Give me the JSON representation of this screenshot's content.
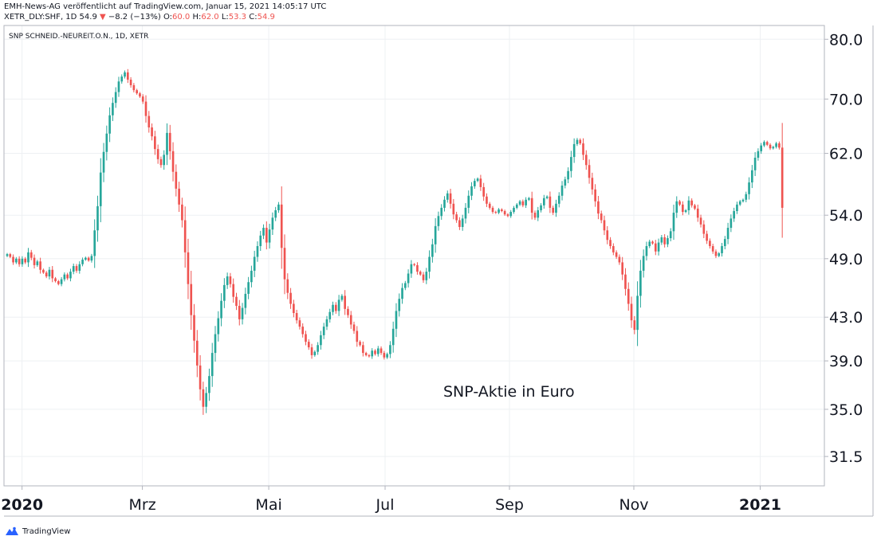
{
  "header": {
    "line1": "EMH-News-AG veröffentlicht auf TradingView.com, Januar 15, 2021 14:05:17 UTC",
    "symbol": "XETR_DLY:SHF, 1D",
    "last": "54.9",
    "change_arrow": "▼",
    "change": "−8.2 (−13%)",
    "o_label": "O:",
    "o_value": "60.0",
    "h_label": "H:",
    "h_value": "62.0",
    "l_label": "L:",
    "l_value": "53.3",
    "c_label": "C:",
    "c_value": "54.9"
  },
  "footer": {
    "brand": "TradingView"
  },
  "colors": {
    "up": "#26a69a",
    "down": "#ef5350",
    "grid": "#eef0f3",
    "border": "#b2b5be"
  },
  "chart_data": {
    "type": "candlestick",
    "title": "SNP SCHNEID.-NEUREIT.O.N., 1D, XETR",
    "annotation": "SNP-Aktie in Euro",
    "y_scale": "log",
    "ylim": [
      29.5,
      82.5
    ],
    "y_ticks": [
      "80.0",
      "70.0",
      "62.0",
      "54.0",
      "49.0",
      "43.0",
      "39.0",
      "35.0",
      "31.5"
    ],
    "x_ticks": [
      {
        "label": "2020",
        "date": "2020-01-02",
        "bold": true
      },
      {
        "label": "Mrz",
        "date": "2020-03-02",
        "bold": false
      },
      {
        "label": "Mai",
        "date": "2020-05-04",
        "bold": false
      },
      {
        "label": "Jul",
        "date": "2020-07-01",
        "bold": false
      },
      {
        "label": "Sep",
        "date": "2020-09-01",
        "bold": false
      },
      {
        "label": "Nov",
        "date": "2020-11-02",
        "bold": false
      },
      {
        "label": "2021",
        "date": "2021-01-04",
        "bold": true
      }
    ],
    "x_range": [
      "2019-12-24",
      "2021-02-05"
    ],
    "last_date": "2021-01-15",
    "closes": [
      49.5,
      49.2,
      48.6,
      49.0,
      48.4,
      49.0,
      48.6,
      49.7,
      49.1,
      48.3,
      48.7,
      47.8,
      47.5,
      47.1,
      47.8,
      46.9,
      46.6,
      46.3,
      46.8,
      47.3,
      46.9,
      47.6,
      48.2,
      47.7,
      48.4,
      48.9,
      49.1,
      48.8,
      49.3,
      52.2,
      55.1,
      59.4,
      62.2,
      64.8,
      67.5,
      69.4,
      71.1,
      72.8,
      73.6,
      74.3,
      73.1,
      72.2,
      71.4,
      70.9,
      70.4,
      69.6,
      67.4,
      65.7,
      64.4,
      62.6,
      61.2,
      60.4,
      61.8,
      64.9,
      62.3,
      59.5,
      57.3,
      55.3,
      53.4,
      49.7,
      46.3,
      43.2,
      40.8,
      38.6,
      36.6,
      35.2,
      36.3,
      37.7,
      39.7,
      41.4,
      42.9,
      44.6,
      46.2,
      47.1,
      46.3,
      45.0,
      44.1,
      42.8,
      43.9,
      45.3,
      46.5,
      47.7,
      49.2,
      50.4,
      51.6,
      52.5,
      50.8,
      52.3,
      53.7,
      54.6,
      55.3,
      50.2,
      46.8,
      45.4,
      44.3,
      43.4,
      42.7,
      42.1,
      41.4,
      40.7,
      40.2,
      39.5,
      39.8,
      40.4,
      41.3,
      42.1,
      42.8,
      43.5,
      44.2,
      43.6,
      44.7,
      45.1,
      43.8,
      43.2,
      42.3,
      41.7,
      40.7,
      40.4,
      39.7,
      39.5,
      39.4,
      39.9,
      39.6,
      40.1,
      39.7,
      39.3,
      39.6,
      40.4,
      41.9,
      43.6,
      44.8,
      45.9,
      46.4,
      47.4,
      48.4,
      48.3,
      47.6,
      47.3,
      46.7,
      47.6,
      49.2,
      50.6,
      52.7,
      53.9,
      54.9,
      55.9,
      56.7,
      55.4,
      54.1,
      53.4,
      52.6,
      53.6,
      54.9,
      56.4,
      57.6,
      58.3,
      58.6,
      57.5,
      56.3,
      55.4,
      54.9,
      54.4,
      54.3,
      54.7,
      54.5,
      54.1,
      53.9,
      54.4,
      54.9,
      55.3,
      55.7,
      55.2,
      55.9,
      56.1,
      54.3,
      53.7,
      54.6,
      55.2,
      56.1,
      56.3,
      54.9,
      54.3,
      55.4,
      56.4,
      57.7,
      58.5,
      59.6,
      61.5,
      63.3,
      63.9,
      63.4,
      61.8,
      60.4,
      58.7,
      57.2,
      55.7,
      54.2,
      53.4,
      52.2,
      51.1,
      50.4,
      49.7,
      49.2,
      48.6,
      47.3,
      45.8,
      44.3,
      42.7,
      41.8,
      45.1,
      47.7,
      49.3,
      50.4,
      50.9,
      50.7,
      49.8,
      50.8,
      51.4,
      50.6,
      51.3,
      52.1,
      54.3,
      55.7,
      55.3,
      54.4,
      54.6,
      55.8,
      55.2,
      54.8,
      53.7,
      52.9,
      51.8,
      51.0,
      50.4,
      49.8,
      49.3,
      49.6,
      50.4,
      51.2,
      52.5,
      53.6,
      54.5,
      55.3,
      55.7,
      55.9,
      56.6,
      58.1,
      59.7,
      61.4,
      62.3,
      63.1,
      63.6,
      63.2,
      62.7,
      62.9,
      63.4,
      62.8,
      54.9
    ]
  }
}
